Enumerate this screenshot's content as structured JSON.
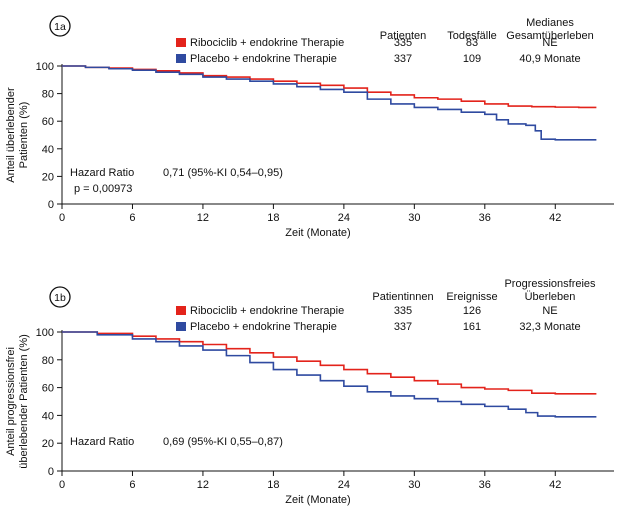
{
  "chart_data": [
    {
      "type": "line",
      "subtype": "kaplan-meier",
      "badge": "1a",
      "xlabel": "Zeit (Monate)",
      "ylabel_lines": [
        "Anteil überlebender",
        "Patienten (%)"
      ],
      "xlim": [
        0,
        47
      ],
      "ylim": [
        0,
        100
      ],
      "xticks": [
        0,
        6,
        12,
        18,
        24,
        30,
        36,
        42
      ],
      "yticks": [
        0,
        20,
        40,
        60,
        80,
        100
      ],
      "table_headers": [
        [
          "Patienten"
        ],
        [
          "Todesfälle"
        ],
        [
          "Medianes",
          "Gesamtüberleben"
        ]
      ],
      "series": [
        {
          "name": "Ribociclib + endokrine Therapie",
          "color": "#e3231b",
          "stats": [
            "335",
            "83",
            "NE"
          ],
          "points": [
            [
              0,
              100
            ],
            [
              2,
              99
            ],
            [
              4,
              98.5
            ],
            [
              6,
              97.5
            ],
            [
              8,
              96.5
            ],
            [
              10,
              95
            ],
            [
              12,
              93
            ],
            [
              14,
              92
            ],
            [
              16,
              90.5
            ],
            [
              18,
              89
            ],
            [
              20,
              87.5
            ],
            [
              22,
              86
            ],
            [
              24,
              84
            ],
            [
              26,
              81
            ],
            [
              28,
              79
            ],
            [
              30,
              77
            ],
            [
              32,
              76
            ],
            [
              34,
              74.5
            ],
            [
              36,
              72.5
            ],
            [
              38,
              71
            ],
            [
              40,
              70.5
            ],
            [
              42,
              70.2
            ],
            [
              44,
              70
            ],
            [
              45.5,
              70
            ]
          ]
        },
        {
          "name": "Placebo + endokrine Therapie",
          "color": "#2f4aa0",
          "stats": [
            "337",
            "109",
            "40,9 Monate"
          ],
          "points": [
            [
              0,
              100
            ],
            [
              2,
              99
            ],
            [
              4,
              98
            ],
            [
              6,
              97
            ],
            [
              8,
              95.5
            ],
            [
              10,
              94
            ],
            [
              12,
              92
            ],
            [
              14,
              90.5
            ],
            [
              16,
              89
            ],
            [
              18,
              87
            ],
            [
              20,
              85
            ],
            [
              22,
              83
            ],
            [
              24,
              81
            ],
            [
              26,
              76
            ],
            [
              28,
              72.5
            ],
            [
              30,
              70
            ],
            [
              32,
              68.5
            ],
            [
              34,
              66.5
            ],
            [
              36,
              65
            ],
            [
              37,
              61
            ],
            [
              38,
              58
            ],
            [
              39.5,
              57
            ],
            [
              40.3,
              53
            ],
            [
              40.8,
              47
            ],
            [
              42,
              46.5
            ],
            [
              45.5,
              46.5
            ]
          ]
        }
      ],
      "hazard": {
        "label": "Hazard Ratio",
        "value": "0,71 (95%-KI 0,54–0,95)",
        "p": "p = 0,00973"
      }
    },
    {
      "type": "line",
      "subtype": "kaplan-meier",
      "badge": "1b",
      "xlabel": "Zeit (Monate)",
      "ylabel_lines": [
        "Anteil progressionsfrei",
        "überlebender Patienten (%)"
      ],
      "xlim": [
        0,
        47
      ],
      "ylim": [
        0,
        100
      ],
      "xticks": [
        0,
        6,
        12,
        18,
        24,
        30,
        36,
        42
      ],
      "yticks": [
        0,
        20,
        40,
        60,
        80,
        100
      ],
      "table_headers": [
        [
          "Patientinnen"
        ],
        [
          "Ereignisse"
        ],
        [
          "Progressionsfreies",
          "Überleben"
        ]
      ],
      "series": [
        {
          "name": "Ribociclib + endokrine Therapie",
          "color": "#e3231b",
          "stats": [
            "335",
            "126",
            "NE"
          ],
          "points": [
            [
              0,
              100
            ],
            [
              3,
              99
            ],
            [
              6,
              97
            ],
            [
              8,
              95
            ],
            [
              10,
              93
            ],
            [
              12,
              91
            ],
            [
              14,
              88
            ],
            [
              16,
              85
            ],
            [
              18,
              82
            ],
            [
              20,
              79
            ],
            [
              22,
              76
            ],
            [
              24,
              73
            ],
            [
              26,
              70
            ],
            [
              28,
              67.5
            ],
            [
              30,
              65
            ],
            [
              32,
              62.5
            ],
            [
              34,
              60
            ],
            [
              36,
              59
            ],
            [
              38,
              58
            ],
            [
              40,
              56
            ],
            [
              42,
              55.5
            ],
            [
              45.5,
              55.5
            ]
          ]
        },
        {
          "name": "Placebo + endokrine Therapie",
          "color": "#2f4aa0",
          "stats": [
            "337",
            "161",
            "32,3 Monate"
          ],
          "points": [
            [
              0,
              100
            ],
            [
              3,
              98
            ],
            [
              6,
              95
            ],
            [
              8,
              93
            ],
            [
              10,
              90
            ],
            [
              12,
              87
            ],
            [
              14,
              83
            ],
            [
              16,
              78
            ],
            [
              18,
              73
            ],
            [
              20,
              69
            ],
            [
              22,
              65
            ],
            [
              24,
              61
            ],
            [
              26,
              57
            ],
            [
              28,
              54
            ],
            [
              30,
              52
            ],
            [
              32,
              50
            ],
            [
              34,
              48
            ],
            [
              36,
              46.5
            ],
            [
              38,
              44.5
            ],
            [
              39.5,
              42
            ],
            [
              40.5,
              39.5
            ],
            [
              42,
              39
            ],
            [
              45.5,
              39
            ]
          ]
        }
      ],
      "hazard": {
        "label": "Hazard Ratio",
        "value": "0,69 (95%-KI 0,55–0,87)",
        "p": ""
      }
    }
  ]
}
